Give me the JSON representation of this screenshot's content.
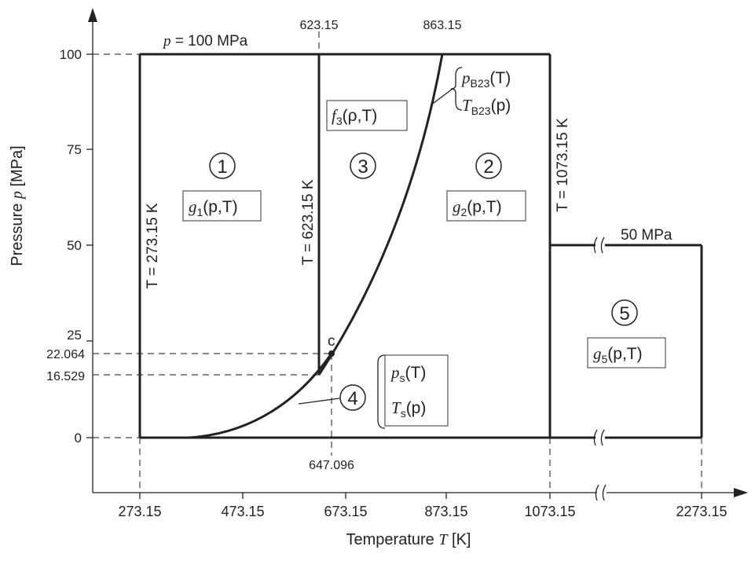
{
  "axes": {
    "x_title": "Temperature",
    "x_symbol": "T",
    "x_unit": "[K]",
    "y_title": "Pressure",
    "y_symbol": "p",
    "y_unit": "[MPa]",
    "x_ticks": [
      "273.15",
      "473.15",
      "673.15",
      "873.15",
      "1073.15",
      "2273.15"
    ],
    "y_ticks": [
      "0",
      "25",
      "50",
      "75",
      "100"
    ],
    "y_extra": [
      "22.064",
      "16.529"
    ],
    "top_marks": [
      "623.15",
      "863.15"
    ],
    "bottom_mark": "647.096"
  },
  "labels": {
    "p100_sym": "p",
    "p100_val": "= 100 MPa",
    "t273": "T = 273.15 K",
    "t623": "T = 623.15 K",
    "t1073": "T = 1073.15 K",
    "p50": "50 MPa",
    "critical": "c"
  },
  "regions": [
    {
      "num": "1",
      "fn": "g",
      "sub": "1",
      "args": "(p,T)"
    },
    {
      "num": "2",
      "fn": "g",
      "sub": "2",
      "args": "(p,T)"
    },
    {
      "num": "3",
      "fn": "f",
      "sub": "3",
      "args": "(ρ,T)"
    },
    {
      "num": "4"
    },
    {
      "num": "5",
      "fn": "g",
      "sub": "5",
      "args": "(p,T)"
    }
  ],
  "b23": {
    "f1": "p",
    "s1": "B23",
    "a1": "(T)",
    "f2": "T",
    "s2": "B23",
    "a2": "(p)"
  },
  "sat": {
    "f1": "p",
    "s1": "s",
    "a1": "(T)",
    "f2": "T",
    "s2": "s",
    "a2": "(p)"
  }
}
